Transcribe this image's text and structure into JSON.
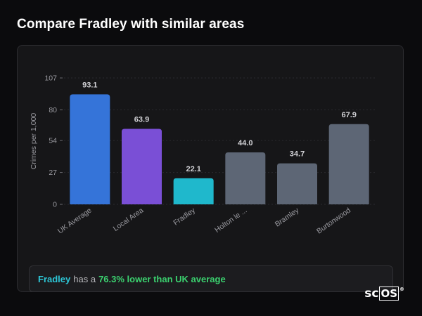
{
  "page_title": "Compare Fradley with similar areas",
  "summary": {
    "place": "Fradley",
    "middle": "has a",
    "comparison": "76.3% lower than UK average"
  },
  "logo": {
    "sc": "sc",
    "os": "OS",
    "reg": "®"
  },
  "colors": {
    "uk_average": "#3574d9",
    "local_area": "#7a4fd6",
    "focus": "#1fb8cc",
    "other": "#5d6675",
    "summary_place": "#2dc6d6",
    "summary_comparison": "#3bd16f"
  },
  "chart_data": {
    "type": "bar",
    "ylabel": "Crimes per 1,000",
    "xlabel": "",
    "title": "",
    "ylim": [
      0,
      107
    ],
    "yticks": [
      0,
      27,
      54,
      80,
      107
    ],
    "grid": true,
    "categories": [
      "UK Average",
      "Local Area",
      "Fradley",
      "Holton le ...",
      "Bramley",
      "Burtonwood"
    ],
    "values": [
      93.1,
      63.9,
      22.1,
      44.0,
      34.7,
      67.9
    ],
    "value_labels": [
      "93.1",
      "63.9",
      "22.1",
      "44.0",
      "34.7",
      "67.9"
    ],
    "bar_colors": [
      "#3574d9",
      "#7a4fd6",
      "#1fb8cc",
      "#5d6675",
      "#5d6675",
      "#5d6675"
    ]
  }
}
